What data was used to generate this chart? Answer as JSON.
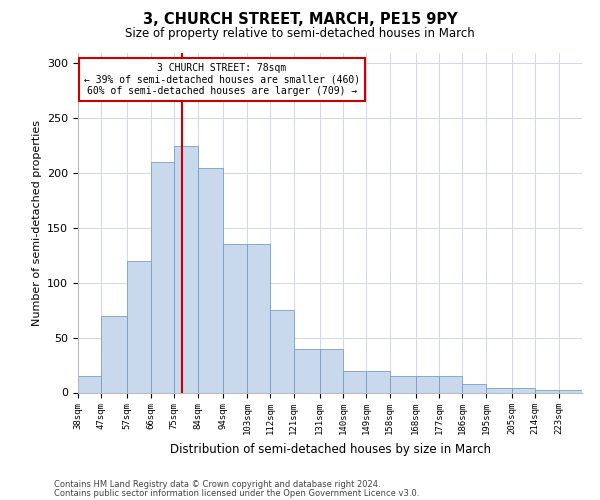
{
  "title": "3, CHURCH STREET, MARCH, PE15 9PY",
  "subtitle": "Size of property relative to semi-detached houses in March",
  "xlabel": "Distribution of semi-detached houses by size in March",
  "ylabel": "Number of semi-detached properties",
  "bar_color": "#c8d9ee",
  "bar_edgecolor": "#7a9ec5",
  "vline_x": 78,
  "vline_color": "#cc0000",
  "annotation_title": "3 CHURCH STREET: 78sqm",
  "annotation_line1": "← 39% of semi-detached houses are smaller (460)",
  "annotation_line2": "60% of semi-detached houses are larger (709) →",
  "footer1": "Contains HM Land Registry data © Crown copyright and database right 2024.",
  "footer2": "Contains public sector information licensed under the Open Government Licence v3.0.",
  "bins": [
    38,
    47,
    57,
    66,
    75,
    84,
    94,
    103,
    112,
    121,
    131,
    140,
    149,
    158,
    168,
    177,
    186,
    195,
    205,
    214,
    223
  ],
  "bar_heights": [
    15,
    70,
    120,
    210,
    225,
    205,
    135,
    135,
    75,
    40,
    40,
    20,
    20,
    15,
    15,
    15,
    8,
    4,
    4,
    2,
    2
  ],
  "ylim": [
    0,
    310
  ],
  "yticks": [
    0,
    50,
    100,
    150,
    200,
    250,
    300
  ],
  "background_color": "#ffffff",
  "grid_color": "#d0d8e8"
}
